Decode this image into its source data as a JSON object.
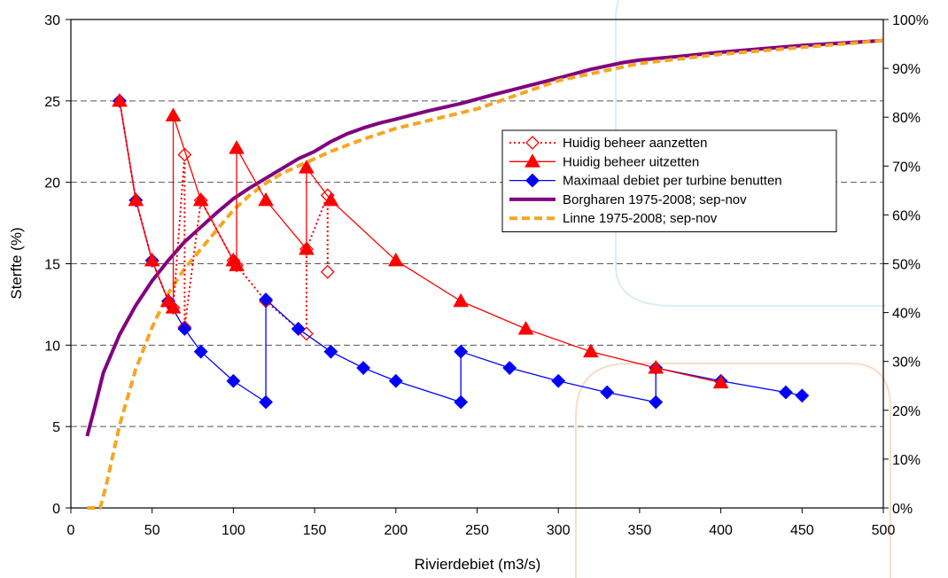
{
  "chart_data": {
    "type": "line",
    "xlabel": "Rivierdebiet (m3/s)",
    "ylabel": "Sterfte (%)",
    "xlim": [
      0,
      500
    ],
    "ylim": [
      0,
      30
    ],
    "y2lim": [
      0,
      100
    ],
    "x_ticks": [
      0,
      50,
      100,
      150,
      200,
      250,
      300,
      350,
      400,
      450,
      500
    ],
    "y_ticks": [
      0,
      5,
      10,
      15,
      20,
      25,
      30
    ],
    "y2_ticks": [
      "0%",
      "10%",
      "20%",
      "30%",
      "40%",
      "50%",
      "60%",
      "70%",
      "80%",
      "90%",
      "100%"
    ],
    "grid": "horizontal dashed",
    "legend_position": "center-right",
    "series": [
      {
        "name": "Huidig beheer aanzetten",
        "axis": "left",
        "color": "#ff0000",
        "line": "dotted",
        "marker": "diamond-open",
        "points": [
          [
            30,
            25
          ],
          [
            40,
            18.9
          ],
          [
            50,
            15.2
          ],
          [
            60,
            12.7
          ],
          [
            63,
            12.3
          ],
          [
            70,
            21.7
          ],
          [
            70,
            11.1
          ],
          [
            80,
            18.9
          ],
          [
            100,
            15.2
          ],
          [
            102,
            14.9
          ],
          [
            120,
            12.7
          ],
          [
            140,
            11
          ],
          [
            145,
            10.7
          ],
          [
            145,
            15.9
          ],
          [
            158,
            19.2
          ],
          [
            158,
            14.5
          ]
        ]
      },
      {
        "name": "Huidig beheer uitzetten",
        "axis": "left",
        "color": "#ff0000",
        "line": "solid",
        "marker": "triangle",
        "points": [
          [
            30,
            25
          ],
          [
            40,
            18.9
          ],
          [
            50,
            15.2
          ],
          [
            60,
            12.7
          ],
          [
            63,
            12.3
          ],
          [
            63,
            24.1
          ],
          [
            80,
            18.9
          ],
          [
            100,
            15.2
          ],
          [
            102,
            14.9
          ],
          [
            102,
            22.1
          ],
          [
            120,
            18.9
          ],
          [
            145,
            15.9
          ],
          [
            145,
            20.9
          ],
          [
            160,
            18.9
          ],
          [
            200,
            15.2
          ],
          [
            240,
            12.7
          ],
          [
            280,
            11
          ],
          [
            320,
            9.6
          ],
          [
            360,
            8.6
          ],
          [
            400,
            7.7
          ]
        ]
      },
      {
        "name": "Maximaal debiet per turbine benutten",
        "axis": "left",
        "color": "#0000ff",
        "line": "solid",
        "marker": "diamond",
        "points": [
          [
            30,
            25
          ],
          [
            40,
            18.9
          ],
          [
            50,
            15.2
          ],
          [
            60,
            12.7
          ],
          [
            70,
            11
          ],
          [
            80,
            9.6
          ],
          [
            100,
            7.8
          ],
          [
            120,
            6.5
          ],
          [
            120,
            12.8
          ],
          [
            140,
            11
          ],
          [
            160,
            9.6
          ],
          [
            180,
            8.6
          ],
          [
            200,
            7.8
          ],
          [
            240,
            6.5
          ],
          [
            240,
            9.6
          ],
          [
            270,
            8.6
          ],
          [
            300,
            7.8
          ],
          [
            330,
            7.1
          ],
          [
            360,
            6.5
          ],
          [
            360,
            8.6
          ],
          [
            400,
            7.8
          ],
          [
            440,
            7.1
          ],
          [
            450,
            6.9
          ]
        ]
      },
      {
        "name": "Borgharen 1975-2008; sep-nov",
        "axis": "right",
        "color": "#800080",
        "line": "solid-thick",
        "marker": "none",
        "points": [
          [
            10,
            14.7
          ],
          [
            15,
            21
          ],
          [
            20,
            27.7
          ],
          [
            30,
            35.5
          ],
          [
            40,
            41.5
          ],
          [
            50,
            46.5
          ],
          [
            60,
            50.7
          ],
          [
            70,
            54.5
          ],
          [
            80,
            57.5
          ],
          [
            90,
            60.5
          ],
          [
            100,
            63.3
          ],
          [
            110,
            65.5
          ],
          [
            120,
            67.5
          ],
          [
            130,
            69.5
          ],
          [
            140,
            71.5
          ],
          [
            150,
            73
          ],
          [
            160,
            75
          ],
          [
            170,
            76.6
          ],
          [
            180,
            77.8
          ],
          [
            190,
            78.8
          ],
          [
            200,
            79.6
          ],
          [
            220,
            81.3
          ],
          [
            240,
            82.8
          ],
          [
            260,
            84.6
          ],
          [
            280,
            86.3
          ],
          [
            300,
            88
          ],
          [
            320,
            89.8
          ],
          [
            340,
            91.2
          ],
          [
            350,
            91.7
          ],
          [
            370,
            92.3
          ],
          [
            400,
            93.3
          ],
          [
            450,
            94.7
          ],
          [
            500,
            95.7
          ]
        ]
      },
      {
        "name": "Linne 1975-2008; sep-nov",
        "axis": "right",
        "color": "#f5a623",
        "line": "dashed-thick",
        "marker": "none",
        "points": [
          [
            10,
            0
          ],
          [
            18,
            0
          ],
          [
            22,
            5
          ],
          [
            30,
            17
          ],
          [
            40,
            28.5
          ],
          [
            50,
            37
          ],
          [
            60,
            44
          ],
          [
            70,
            49
          ],
          [
            80,
            53
          ],
          [
            90,
            57
          ],
          [
            100,
            61
          ],
          [
            110,
            64
          ],
          [
            120,
            66.5
          ],
          [
            130,
            68.5
          ],
          [
            140,
            70
          ],
          [
            150,
            71.5
          ],
          [
            160,
            73
          ],
          [
            180,
            75.5
          ],
          [
            200,
            77.7
          ],
          [
            250,
            81.7
          ],
          [
            300,
            87.5
          ],
          [
            350,
            91
          ],
          [
            400,
            92.9
          ],
          [
            450,
            94.3
          ],
          [
            500,
            95.7
          ]
        ]
      }
    ]
  }
}
